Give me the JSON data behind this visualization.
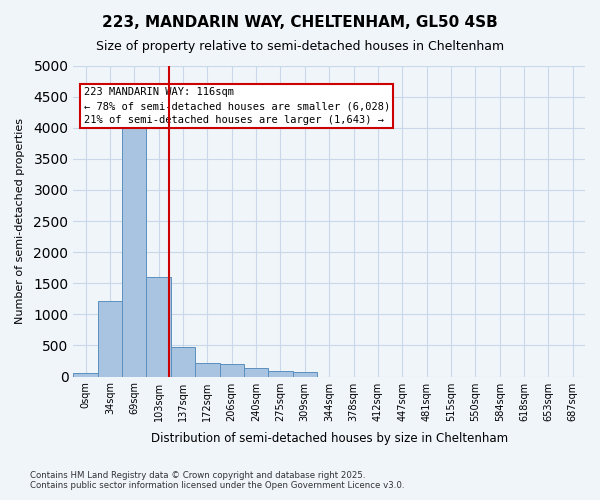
{
  "title1": "223, MANDARIN WAY, CHELTENHAM, GL50 4SB",
  "title2": "Size of property relative to semi-detached houses in Cheltenham",
  "xlabel": "Distribution of semi-detached houses by size in Cheltenham",
  "ylabel": "Number of semi-detached properties",
  "footnote": "Contains HM Land Registry data © Crown copyright and database right 2025.\nContains public sector information licensed under the Open Government Licence v3.0.",
  "annotation_title": "223 MANDARIN WAY: 116sqm",
  "annotation_line1": "← 78% of semi-detached houses are smaller (6,028)",
  "annotation_line2": "21% of semi-detached houses are larger (1,643) →",
  "bin_labels": [
    "0sqm",
    "34sqm",
    "69sqm",
    "103sqm",
    "137sqm",
    "172sqm",
    "206sqm",
    "240sqm",
    "275sqm",
    "309sqm",
    "344sqm",
    "378sqm",
    "412sqm",
    "447sqm",
    "481sqm",
    "515sqm",
    "550sqm",
    "584sqm",
    "618sqm",
    "653sqm",
    "687sqm"
  ],
  "bar_values": [
    50,
    1220,
    4020,
    1600,
    480,
    210,
    195,
    130,
    85,
    65,
    0,
    0,
    0,
    0,
    0,
    0,
    0,
    0,
    0,
    0,
    0
  ],
  "bar_color": "#a8c4e0",
  "bar_edge_color": "#5a8fbf",
  "vline_x": 3.41,
  "vline_color": "#cc0000",
  "ylim": [
    0,
    5000
  ],
  "yticks": [
    0,
    500,
    1000,
    1500,
    2000,
    2500,
    3000,
    3500,
    4000,
    4500,
    5000
  ],
  "annotation_box_color": "#cc0000",
  "grid_color": "#c8d8e8",
  "bg_color": "#f0f5fa"
}
